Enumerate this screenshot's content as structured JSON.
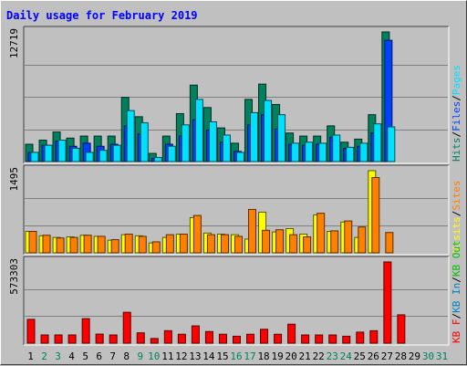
{
  "chart_data": {
    "type": "bar",
    "title": "Daily usage for February 2019",
    "title_color": "#0000ff",
    "categories": [
      "1",
      "2",
      "3",
      "4",
      "5",
      "6",
      "7",
      "8",
      "9",
      "10",
      "11",
      "12",
      "13",
      "14",
      "15",
      "16",
      "17",
      "18",
      "19",
      "20",
      "21",
      "22",
      "23",
      "24",
      "25",
      "26",
      "27",
      "28",
      "29",
      "30",
      "31"
    ],
    "weekend_days": [
      "2",
      "3",
      "9",
      "10",
      "16",
      "17",
      "23",
      "24",
      "30",
      "31"
    ],
    "colors": {
      "hits": "#00805c",
      "files": "#0040ff",
      "pages": "#00e0ff",
      "visits": "#ffff00",
      "sites": "#ff8000",
      "kbin": "#0080c0",
      "kbout": "#00c000",
      "kbf": "#ff0000",
      "weekday_label": "#000000",
      "weekend_label": "#00805c"
    },
    "panels": [
      {
        "id": "hits_files_pages",
        "ymax_label": "12719",
        "ymax": 12719,
        "legend": [
          {
            "text": "Hits",
            "color": "#00805c"
          },
          {
            "text": "/",
            "color": "#000000"
          },
          {
            "text": "Files",
            "color": "#0040ff"
          },
          {
            "text": "/",
            "color": "#000000"
          },
          {
            "text": "Pages",
            "color": "#00e0ff"
          }
        ],
        "series": [
          {
            "name": "Hits",
            "color": "#00805c",
            "values": [
              1700,
              2100,
              2900,
              2300,
              2500,
              2500,
              2500,
              6300,
              4400,
              800,
              2500,
              4700,
              7500,
              5300,
              3300,
              1800,
              6100,
              7600,
              5600,
              2800,
              2500,
              2500,
              3500,
              1900,
              2200,
              4600,
              12719,
              0,
              0,
              0,
              0
            ]
          },
          {
            "name": "Files",
            "color": "#0040ff",
            "values": [
              900,
              1600,
              2000,
              1500,
              1800,
              1500,
              1700,
              3500,
              2700,
              300,
              1700,
              2500,
              4100,
              3100,
              1900,
              1000,
              3600,
              4600,
              3200,
              1700,
              1600,
              1700,
              2400,
              1300,
              1500,
              2800,
              11900,
              0,
              0,
              0,
              0
            ]
          },
          {
            "name": "Pages",
            "color": "#00e0ff",
            "values": [
              900,
              1600,
              2100,
              1300,
              900,
              1100,
              1600,
              5000,
              3800,
              400,
              1500,
              3600,
              6100,
              3900,
              2600,
              900,
              4800,
              6000,
              4600,
              1800,
              1900,
              1800,
              2600,
              1400,
              1800,
              3700,
              3400,
              0,
              0,
              0,
              0
            ]
          }
        ]
      },
      {
        "id": "visits_sites",
        "ymax_label": "1495",
        "ymax": 1495,
        "legend": [
          {
            "text": "Visits",
            "color": "#ffff00"
          },
          {
            "text": "/",
            "color": "#000000"
          },
          {
            "text": "Sites",
            "color": "#ff8000"
          }
        ],
        "series": [
          {
            "name": "Visits",
            "color": "#ffff00",
            "values": [
              390,
              310,
              280,
              290,
              320,
              300,
              230,
              330,
              310,
              180,
              280,
              340,
              640,
              360,
              340,
              330,
              250,
              740,
              380,
              440,
              340,
              690,
              390,
              560,
              280,
              1495,
              0,
              0,
              0,
              0,
              0
            ]
          },
          {
            "name": "Sites",
            "color": "#ff8000",
            "values": [
              390,
              320,
              270,
              280,
              320,
              300,
              240,
              340,
              300,
              200,
              330,
              340,
              680,
              330,
              330,
              300,
              790,
              410,
              420,
              330,
              290,
              720,
              400,
              580,
              470,
              1370,
              370,
              0,
              0,
              0,
              0
            ]
          }
        ]
      },
      {
        "id": "kbytes",
        "ymax_label": "573303",
        "ymax": 573303,
        "legend": [
          {
            "text": "KB F",
            "color": "#ff0000"
          },
          {
            "text": "/",
            "color": "#000000"
          },
          {
            "text": "KB In",
            "color": "#0080c0"
          },
          {
            "text": "/",
            "color": "#000000"
          },
          {
            "text": "KB Out",
            "color": "#00c000"
          }
        ],
        "series": [
          {
            "name": "KB F",
            "color": "#ff0000",
            "values": [
              168000,
              58000,
              58000,
              58000,
              173000,
              64000,
              58000,
              218000,
              73000,
              33000,
              88000,
              63000,
              122000,
              82000,
              63000,
              49000,
              63000,
              98000,
              63000,
              134000,
              58000,
              58000,
              58000,
              49000,
              78000,
              88000,
              573303,
              200000,
              0,
              0,
              0
            ]
          }
        ]
      }
    ]
  }
}
